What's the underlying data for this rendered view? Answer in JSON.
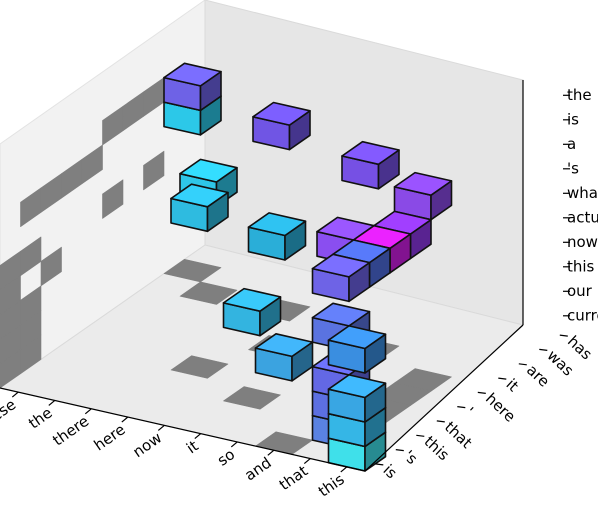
{
  "chart_data": {
    "type": "bar3d",
    "x_axis": {
      "ticks": [
        "these",
        "the",
        "there",
        "here",
        "now",
        "it",
        "so",
        "and",
        "that",
        "this"
      ]
    },
    "y_axis": {
      "ticks": [
        "is",
        "'s",
        "this",
        "that",
        "'",
        "here",
        "it",
        "are",
        "was",
        "has"
      ]
    },
    "z_axis": {
      "ticks": [
        "current",
        "our",
        "this",
        "now",
        "actually",
        "what",
        "'s",
        "a",
        "is",
        "the"
      ]
    },
    "voxels": [
      {
        "x": 9,
        "y": 0,
        "z": 0,
        "color": "#3fe0ea"
      },
      {
        "x": 9,
        "y": 0,
        "z": 1,
        "color": "#35b6e6"
      },
      {
        "x": 9,
        "y": 0,
        "z": 2,
        "color": "#39a6e3"
      },
      {
        "x": 9,
        "y": 0,
        "z": 4,
        "color": "#3a8ee0"
      },
      {
        "x": 8,
        "y": 1,
        "z": 0,
        "color": "#5a82e2"
      },
      {
        "x": 8,
        "y": 1,
        "z": 1,
        "color": "#5c6fe1"
      },
      {
        "x": 8,
        "y": 1,
        "z": 2,
        "color": "#6368e4"
      },
      {
        "x": 8,
        "y": 1,
        "z": 4,
        "color": "#5a73e0"
      },
      {
        "x": 7,
        "y": 0,
        "z": 3,
        "color": "#3ba3e0"
      },
      {
        "x": 5,
        "y": 2,
        "z": 3,
        "color": "#33b4e0"
      },
      {
        "x": 3,
        "y": 3,
        "z": 6,
        "color": "#2ebbe0"
      },
      {
        "x": 8,
        "y": 1,
        "z": 6,
        "color": "#6e63e6"
      },
      {
        "x": 8,
        "y": 2,
        "z": 6,
        "color": "#4f6de0"
      },
      {
        "x": 1,
        "y": 7,
        "z": 4,
        "color": "#2ec6e8"
      },
      {
        "x": 4,
        "y": 5,
        "z": 4,
        "color": "#2aaed8"
      },
      {
        "x": 0,
        "y": 8,
        "z": 7,
        "color": "#6e62e6"
      },
      {
        "x": 3,
        "y": 7,
        "z": 7,
        "color": "#7055e4"
      },
      {
        "x": 6,
        "y": 6,
        "z": 7,
        "color": "#7650e4"
      },
      {
        "x": 8,
        "y": 5,
        "z": 7,
        "color": "#8a4ae6"
      },
      {
        "x": 8,
        "y": 4,
        "z": 6,
        "color": "#9038ea"
      },
      {
        "x": 8,
        "y": 3,
        "z": 6,
        "color": "#d21ee8"
      },
      {
        "x": 7,
        "y": 3,
        "z": 6,
        "color": "#8a4ef0"
      },
      {
        "x": 0,
        "y": 8,
        "z": 6,
        "color": "#2cc8e8"
      }
    ]
  }
}
